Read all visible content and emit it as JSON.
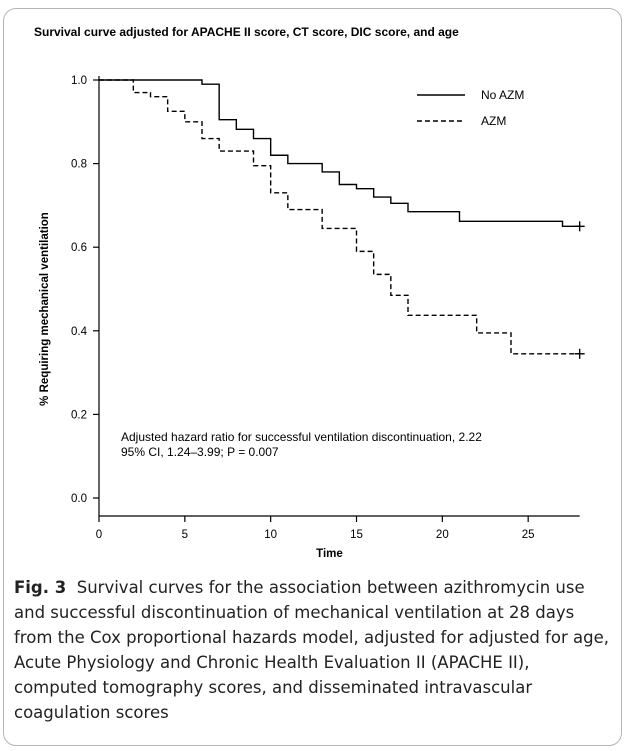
{
  "chart_data": {
    "type": "line",
    "title": "Survival curve adjusted for APACHE II score, CT score, DIC score, and age",
    "xlabel": "Time",
    "ylabel": "% Requiring mechanical ventilation",
    "xlim": [
      0,
      30
    ],
    "ylim": [
      0,
      1.0
    ],
    "x_ticks": [
      "0",
      "5",
      "10",
      "15",
      "20",
      "25"
    ],
    "y_ticks": [
      "0.0",
      "0.2",
      "0.4",
      "0.6",
      "0.8",
      "1.0"
    ],
    "legend_position": "top-right",
    "series": [
      {
        "name": "No AZM",
        "style": "solid",
        "censor_at": [
          28,
          0.65
        ],
        "steps": [
          [
            0,
            1.0
          ],
          [
            6,
            0.99
          ],
          [
            7,
            0.905
          ],
          [
            8,
            0.882
          ],
          [
            9,
            0.86
          ],
          [
            10,
            0.82
          ],
          [
            11,
            0.8
          ],
          [
            13,
            0.78
          ],
          [
            14,
            0.75
          ],
          [
            15,
            0.74
          ],
          [
            16,
            0.72
          ],
          [
            17,
            0.705
          ],
          [
            18,
            0.685
          ],
          [
            21,
            0.662
          ],
          [
            27,
            0.65
          ],
          [
            28,
            0.65
          ]
        ]
      },
      {
        "name": "AZM",
        "style": "dashed",
        "censor_at": [
          28,
          0.345
        ],
        "steps": [
          [
            0,
            1.0
          ],
          [
            2,
            0.97
          ],
          [
            3,
            0.96
          ],
          [
            4,
            0.925
          ],
          [
            5,
            0.9
          ],
          [
            6,
            0.86
          ],
          [
            7,
            0.83
          ],
          [
            9,
            0.795
          ],
          [
            10,
            0.73
          ],
          [
            11,
            0.69
          ],
          [
            13,
            0.645
          ],
          [
            15,
            0.59
          ],
          [
            16,
            0.535
          ],
          [
            17,
            0.485
          ],
          [
            18,
            0.437
          ],
          [
            22,
            0.395
          ],
          [
            24,
            0.345
          ],
          [
            28,
            0.345
          ]
        ]
      }
    ],
    "annotation": {
      "line1": "Adjusted hazard ratio for successful ventilation discontinuation, 2.22",
      "line2": "95% CI, 1.24–3.99; P = 0.007"
    }
  },
  "caption": {
    "fig_label": "Fig. 3",
    "text": "Survival curves for the association between azithromycin use and successful discontinuation of mechanical ventilation at 28 days from the Cox proportional hazards model, adjusted for adjusted for age, Acute Physiology and Chronic Health Evaluation II (APACHE II), computed tomography scores, and disseminated intravascular coagulation scores"
  }
}
